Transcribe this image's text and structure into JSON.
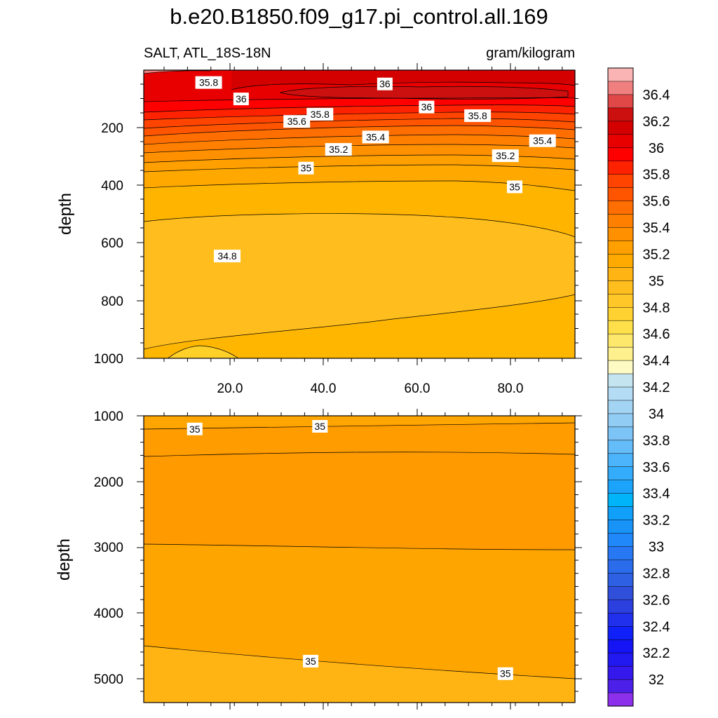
{
  "chart_data": {
    "type": "filled-contour",
    "title": "b.e20.B1850.f09_g17.pi_control.all.169",
    "variable_label": "SALT, ATL_18S-18N",
    "units_label": "gram/kilogram",
    "panels": [
      {
        "id": "upper",
        "ylabel": "depth",
        "ylim": [
          1000,
          0
        ],
        "y_ticks": [
          "200",
          "400",
          "600",
          "800",
          "1000"
        ],
        "xlim": [
          0,
          93
        ],
        "x_ticks": [
          "20.0",
          "40.0",
          "60.0",
          "80.0"
        ],
        "contour_labels": [
          {
            "text": "35.8",
            "x": 14,
            "y": 43
          },
          {
            "text": "36",
            "x": 21,
            "y": 100
          },
          {
            "text": "36",
            "x": 52,
            "y": 48
          },
          {
            "text": "36",
            "x": 61,
            "y": 128
          },
          {
            "text": "35.8",
            "x": 38,
            "y": 153
          },
          {
            "text": "35.8",
            "x": 72,
            "y": 158
          },
          {
            "text": "35.6",
            "x": 33,
            "y": 178
          },
          {
            "text": "35.4",
            "x": 50,
            "y": 232
          },
          {
            "text": "35.4",
            "x": 86,
            "y": 245
          },
          {
            "text": "35.2",
            "x": 42,
            "y": 275
          },
          {
            "text": "35.2",
            "x": 78,
            "y": 297
          },
          {
            "text": "35",
            "x": 35,
            "y": 340
          },
          {
            "text": "35",
            "x": 80,
            "y": 405
          },
          {
            "text": "34.8",
            "x": 18,
            "y": 645
          }
        ]
      },
      {
        "id": "lower",
        "ylabel": "depth",
        "ylim": [
          5360,
          1000
        ],
        "y_ticks": [
          "1000",
          "2000",
          "3000",
          "4000",
          "5000"
        ],
        "xlim": [
          0,
          93
        ],
        "contour_labels": [
          {
            "text": "35",
            "x": 11,
            "y": 1200
          },
          {
            "text": "35",
            "x": 38,
            "y": 1160
          },
          {
            "text": "35",
            "x": 36,
            "y": 4730
          },
          {
            "text": "35",
            "x": 78,
            "y": 4920
          }
        ]
      }
    ],
    "colorbar": {
      "labels": [
        "36.4",
        "36.2",
        "36",
        "35.8",
        "35.6",
        "35.4",
        "35.2",
        "35",
        "34.8",
        "34.6",
        "34.4",
        "34.2",
        "34",
        "33.8",
        "33.6",
        "33.4",
        "33.2",
        "33",
        "32.8",
        "32.6",
        "32.4",
        "32.2",
        "32"
      ],
      "colors": [
        "#fbb4b4",
        "#f08080",
        "#e04848",
        "#cc1010",
        "#d40000",
        "#e80000",
        "#ff0000",
        "#ff2200",
        "#ff4400",
        "#ff5500",
        "#ff6e00",
        "#ff8000",
        "#ff9000",
        "#ffa000",
        "#ffaa00",
        "#ffb414",
        "#ffbe1e",
        "#ffc828",
        "#ffd232",
        "#ffe04a",
        "#fee86c",
        "#fef08c",
        "#fefac4",
        "#c4e4f0",
        "#b4dcf4",
        "#a4d4f4",
        "#90ccf4",
        "#7cc4f6",
        "#64bcf8",
        "#4cb4fa",
        "#34acfc",
        "#1ca4fc",
        "#00b4fa",
        "#10a0fa",
        "#1894f8",
        "#2088f8",
        "#2878f4",
        "#2a6cec",
        "#2e60e4",
        "#3050dc",
        "#2c40e0",
        "#2030ec",
        "#1020f8",
        "#1414f4",
        "#2218f0",
        "#3418ec",
        "#4c20e8",
        "#8c30ec"
      ]
    }
  }
}
